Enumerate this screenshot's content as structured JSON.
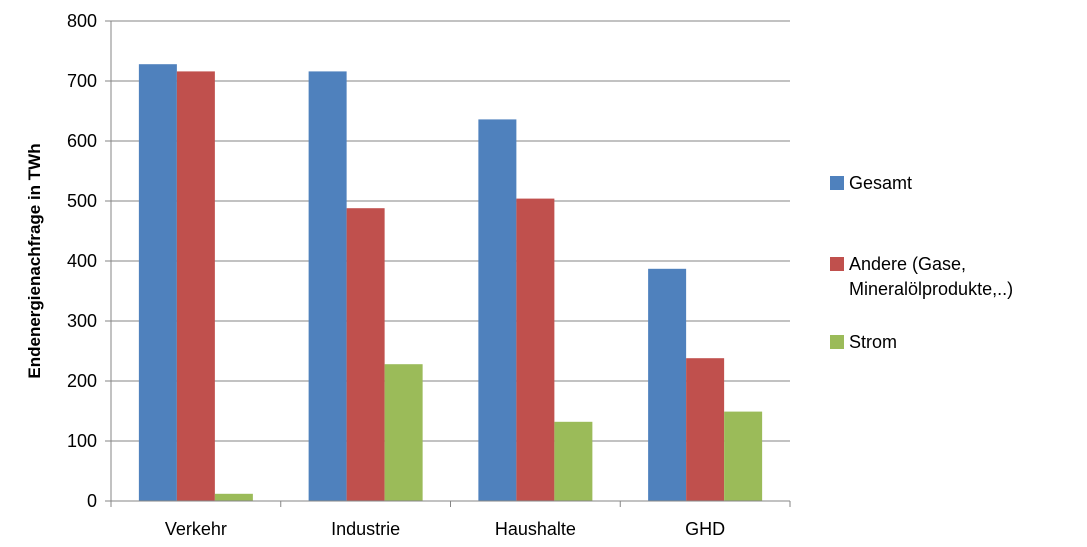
{
  "chart_data": {
    "type": "bar",
    "categories": [
      "Verkehr",
      "Industrie",
      "Haushalte",
      "GHD"
    ],
    "series": [
      {
        "name": "Gesamt",
        "color": "#4F81BD",
        "values": [
          728,
          716,
          636,
          387
        ]
      },
      {
        "name": "Andere (Gase, Mineralölprodukte,..)",
        "legend_lines": [
          "Andere (Gase,",
          "Mineralölprodukte,..)"
        ],
        "color": "#C0504D",
        "values": [
          716,
          488,
          504,
          238
        ]
      },
      {
        "name": "Strom",
        "color": "#9BBB59",
        "values": [
          12,
          228,
          132,
          149
        ]
      }
    ],
    "title": "",
    "xlabel": "",
    "ylabel": "Endenergienachfrage in TWh",
    "ylim": [
      0,
      800
    ],
    "yticks": [
      0,
      100,
      200,
      300,
      400,
      500,
      600,
      700,
      800
    ],
    "grid": true,
    "legend_position": "right"
  }
}
